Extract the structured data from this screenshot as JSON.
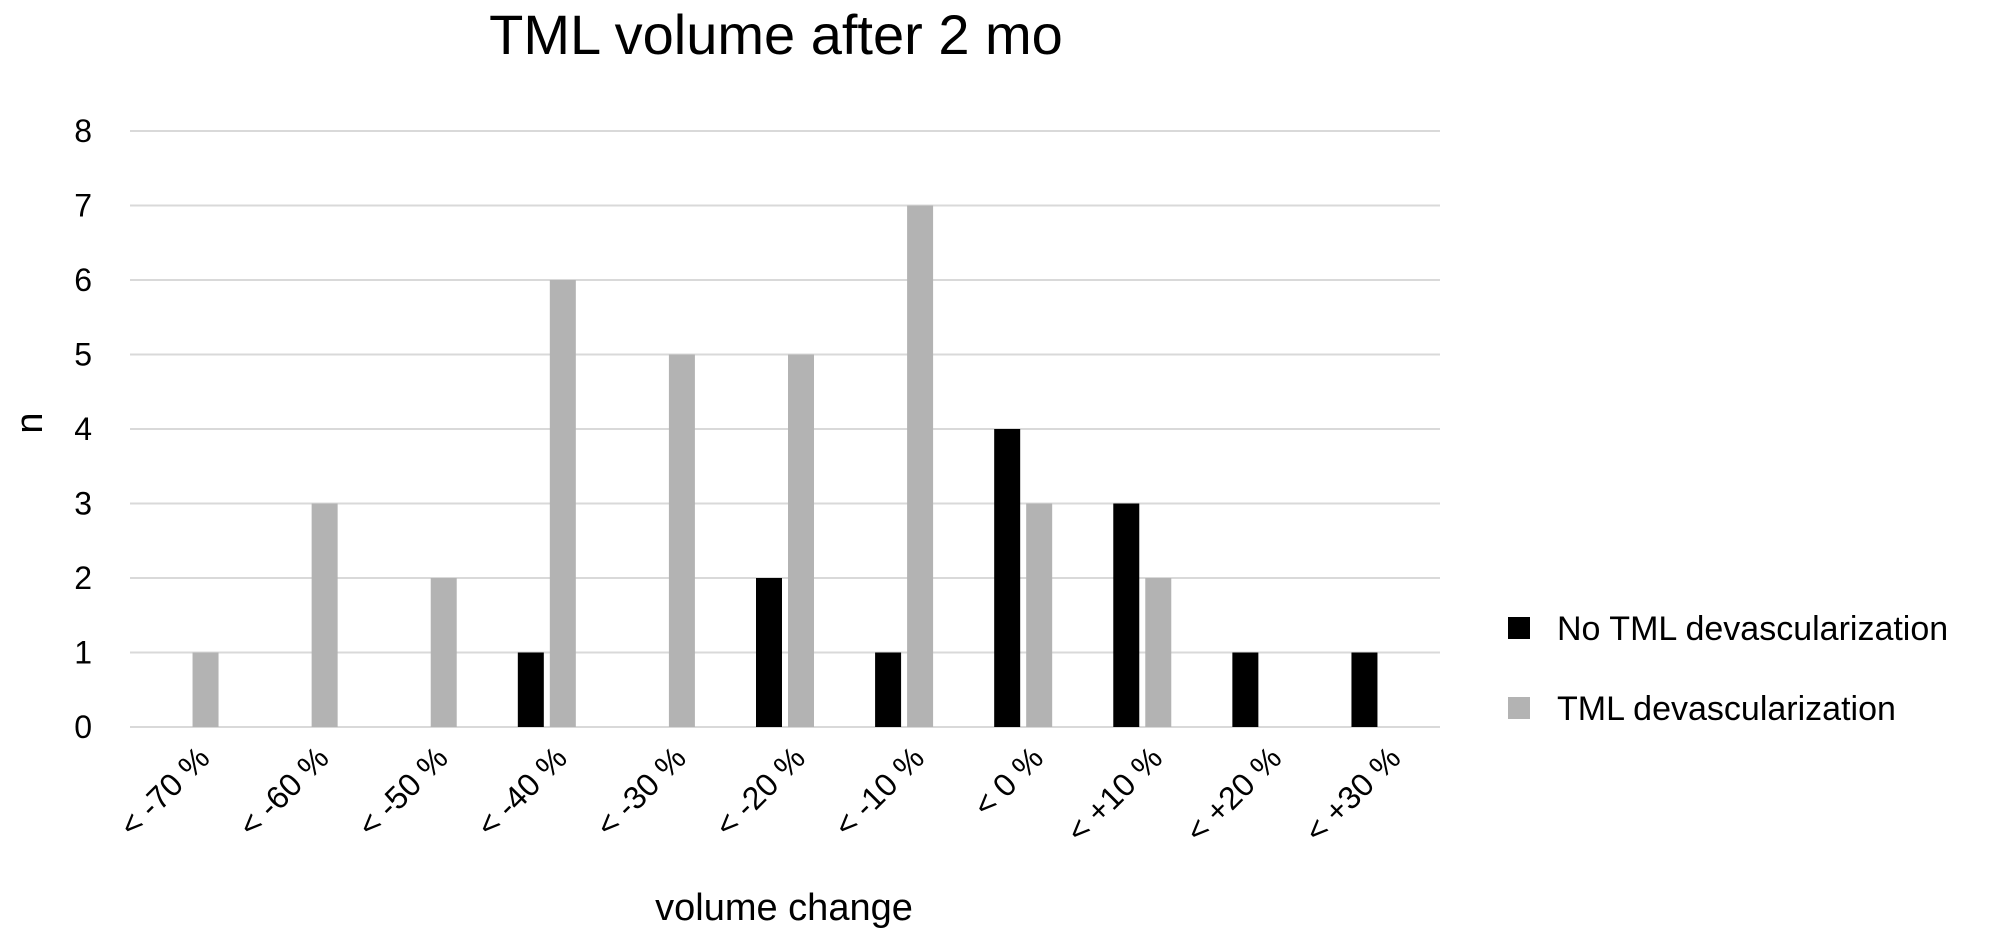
{
  "chart_data": {
    "type": "bar",
    "title": "TML volume after 2 mo",
    "xlabel": "volume change",
    "ylabel": "n",
    "ylim": [
      0,
      8
    ],
    "yticks": [
      "0",
      "1",
      "2",
      "3",
      "4",
      "5",
      "6",
      "7",
      "8"
    ],
    "grid": true,
    "legend_position": "right",
    "categories": [
      "< -70 %",
      "< -60 %",
      "< -50 %",
      "< -40 %",
      "< -30 %",
      "< -20 %",
      "< -10 %",
      "< 0 %",
      "< +10 %",
      "< +20 %",
      "< +30 %"
    ],
    "series": [
      {
        "name": "No TML devascularization",
        "color": "#000000",
        "values": [
          0,
          0,
          0,
          1,
          0,
          2,
          1,
          4,
          3,
          1,
          1
        ]
      },
      {
        "name": "TML devascularization",
        "color": "#b3b3b3",
        "values": [
          1,
          3,
          2,
          6,
          5,
          5,
          7,
          3,
          2,
          0,
          0
        ]
      }
    ]
  }
}
